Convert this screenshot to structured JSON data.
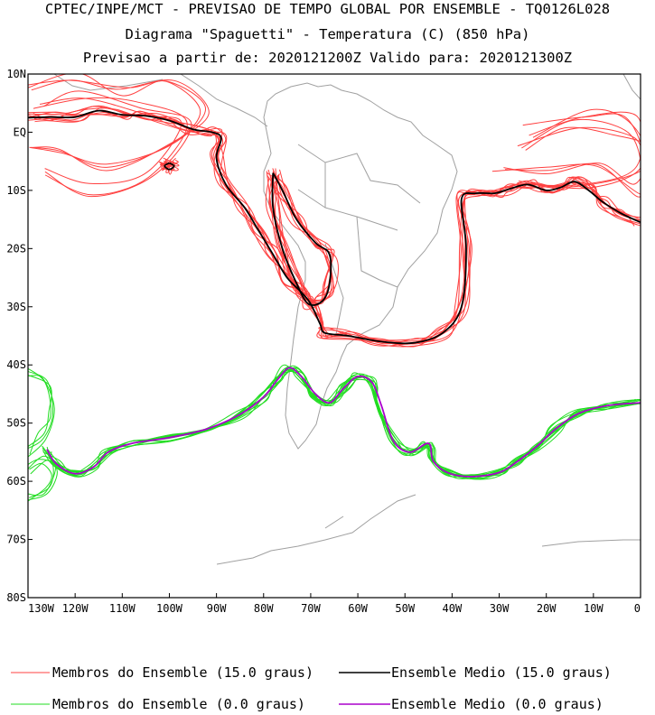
{
  "header": {
    "line1": "CPTEC/INPE/MCT - PREVISAO DE TEMPO GLOBAL POR ENSEMBLE - TQ0126L028",
    "line2": "Diagrama \"Spaguetti\" - Temperatura (C) (850 hPa)",
    "line3": "Previsao a partir de: 2020121200Z  Valido para: 2020121300Z"
  },
  "legend": {
    "members_15": "Membros do Ensemble (15.0 graus)",
    "mean_15": "Ensemble Medio (15.0 graus)",
    "members_0": "Membros do Ensemble (0.0 graus)",
    "mean_0": "Ensemble Medio (0.0 graus)"
  },
  "colors": {
    "members_15": "#ff4040",
    "mean_15": "#000000",
    "members_0": "#22dd22",
    "mean_0": "#aa00cc",
    "coast": "#a0a0a0"
  },
  "chart_data": {
    "type": "line",
    "xlim": [
      -130,
      0
    ],
    "ylim": [
      -80,
      10
    ],
    "x_ticks": [
      {
        "value": -130,
        "label": "130W"
      },
      {
        "value": -120,
        "label": "120W"
      },
      {
        "value": -110,
        "label": "110W"
      },
      {
        "value": -100,
        "label": "100W"
      },
      {
        "value": -90,
        "label": "90W"
      },
      {
        "value": -80,
        "label": "80W"
      },
      {
        "value": -70,
        "label": "70W"
      },
      {
        "value": -60,
        "label": "60W"
      },
      {
        "value": -50,
        "label": "50W"
      },
      {
        "value": -40,
        "label": "40W"
      },
      {
        "value": -30,
        "label": "30W"
      },
      {
        "value": -20,
        "label": "20W"
      },
      {
        "value": -10,
        "label": "10W"
      },
      {
        "value": 0,
        "label": "0"
      }
    ],
    "y_ticks": [
      {
        "value": 10,
        "label": "10N"
      },
      {
        "value": 0,
        "label": "EQ"
      },
      {
        "value": -10,
        "label": "10S"
      },
      {
        "value": -20,
        "label": "20S"
      },
      {
        "value": -30,
        "label": "30S"
      },
      {
        "value": -40,
        "label": "40S"
      },
      {
        "value": -50,
        "label": "50S"
      },
      {
        "value": -60,
        "label": "60S"
      },
      {
        "value": -70,
        "label": "70S"
      },
      {
        "value": -80,
        "label": "80S"
      }
    ],
    "series": [
      {
        "name": "Ensemble Medio (15.0 graus)",
        "kind": "mean15",
        "points": [
          [
            -130,
            2.5
          ],
          [
            -125,
            2.6
          ],
          [
            -120,
            2.6
          ],
          [
            -115,
            3.7
          ],
          [
            -110,
            3.0
          ],
          [
            -105,
            2.8
          ],
          [
            -100,
            2.0
          ],
          [
            -95,
            0.5
          ],
          [
            -91,
            0.0
          ],
          [
            -89,
            -1.0
          ],
          [
            -90,
            -4.5
          ],
          [
            -88,
            -9
          ],
          [
            -84,
            -13
          ],
          [
            -81,
            -17
          ],
          [
            -78,
            -21
          ],
          [
            -75,
            -25
          ],
          [
            -72,
            -27.5
          ],
          [
            -70,
            -29.5
          ],
          [
            -68,
            -33
          ],
          [
            -67,
            -34.5
          ],
          [
            -62,
            -35
          ],
          [
            -55,
            -36
          ],
          [
            -48,
            -36.2
          ],
          [
            -42,
            -34.5
          ],
          [
            -38,
            -30
          ],
          [
            -37,
            -20
          ],
          [
            -38,
            -11.5
          ],
          [
            -35,
            -10.5
          ],
          [
            -31,
            -10.5
          ],
          [
            -28,
            -9.8
          ],
          [
            -24,
            -9
          ],
          [
            -20,
            -10
          ],
          [
            -17,
            -9.5
          ],
          [
            -14,
            -8.5
          ],
          [
            -11,
            -10
          ],
          [
            -8,
            -12
          ],
          [
            -4,
            -14
          ],
          [
            0,
            -15.5
          ]
        ]
      },
      {
        "name": "Ensemble Medio (15.0 graus)",
        "kind": "mean15",
        "points": [
          [
            -78,
            -7
          ],
          [
            -76,
            -10
          ],
          [
            -73,
            -15
          ],
          [
            -69,
            -19
          ],
          [
            -66,
            -21
          ],
          [
            -66,
            -26
          ],
          [
            -67.5,
            -29
          ],
          [
            -70.5,
            -29.5
          ],
          [
            -73,
            -26
          ],
          [
            -76,
            -20
          ],
          [
            -78,
            -13
          ],
          [
            -78,
            -7
          ]
        ]
      },
      {
        "name": "Ensemble Medio (15.0 graus)",
        "kind": "mean15",
        "points": [
          [
            -100,
            -5.3
          ],
          [
            -99,
            -5.8
          ],
          [
            -100,
            -6.4
          ],
          [
            -101,
            -5.8
          ],
          [
            -100,
            -5.3
          ]
        ]
      },
      {
        "name": "Ensemble Medio (0.0 graus)",
        "kind": "mean0",
        "points": [
          [
            -126,
            -54.5
          ],
          [
            -124,
            -57
          ],
          [
            -120,
            -58.7
          ],
          [
            -116,
            -57.5
          ],
          [
            -113,
            -55
          ],
          [
            -108,
            -53.5
          ],
          [
            -100,
            -52.5
          ],
          [
            -92,
            -51
          ],
          [
            -85,
            -48.5
          ],
          [
            -80,
            -45.5
          ],
          [
            -77,
            -42.5
          ],
          [
            -74.5,
            -40.5
          ],
          [
            -72,
            -42
          ],
          [
            -69,
            -45
          ],
          [
            -66,
            -46.5
          ],
          [
            -63,
            -44
          ],
          [
            -60,
            -42
          ],
          [
            -57,
            -43
          ],
          [
            -55,
            -47
          ],
          [
            -52.5,
            -53
          ],
          [
            -49,
            -55
          ],
          [
            -45,
            -53.5
          ],
          [
            -44,
            -56.5
          ],
          [
            -41,
            -58.5
          ],
          [
            -36,
            -59.2
          ],
          [
            -30,
            -58.5
          ],
          [
            -26,
            -56.5
          ],
          [
            -22,
            -54
          ],
          [
            -18,
            -51
          ],
          [
            -13,
            -48.3
          ],
          [
            -7,
            -47
          ],
          [
            0,
            -46.5
          ]
        ]
      },
      {
        "name": "Membros do Ensemble (15.0 graus)",
        "kind": "mem15",
        "points": []
      },
      {
        "name": "Membros do Ensemble (0.0 graus)",
        "kind": "mem0",
        "points": []
      }
    ]
  }
}
